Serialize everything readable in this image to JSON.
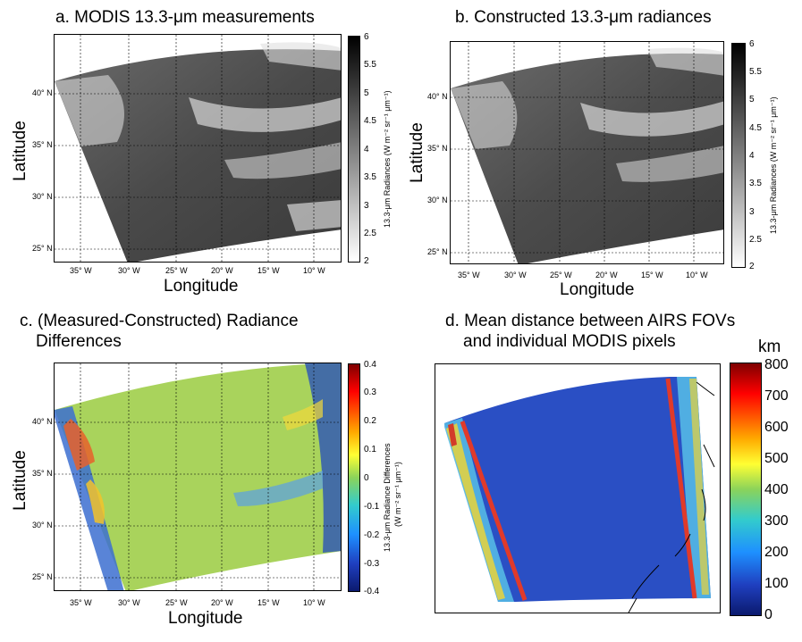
{
  "chart_data": [
    {
      "type": "heatmap",
      "title": "a. MODIS 13.3-μm measurements",
      "xlabel": "Longitude",
      "ylabel": "Latitude",
      "xticks": [
        "35° W",
        "30° W",
        "25° W",
        "20° W",
        "15° W",
        "10° W"
      ],
      "yticks": [
        "40° N",
        "35° N",
        "30° N",
        "25° N"
      ],
      "colorbar": {
        "label": "13.3-μm Radiances (W m⁻² sr⁻¹ μm⁻¹)",
        "ticks": [
          "6",
          "5.5",
          "5",
          "4.5",
          "4",
          "3.5",
          "3",
          "2.5",
          "2"
        ],
        "range": [
          2,
          6
        ],
        "colormap": "gray-reversed"
      }
    },
    {
      "type": "heatmap",
      "title": "b. Constructed 13.3-μm radiances",
      "xlabel": "Longitude",
      "ylabel": "Latitude",
      "xticks": [
        "35° W",
        "30° W",
        "25° W",
        "20° W",
        "15° W",
        "10° W"
      ],
      "yticks": [
        "40° N",
        "35° N",
        "30° N",
        "25° N"
      ],
      "colorbar": {
        "label": "13.3-μm Radiances (W m⁻² sr⁻¹ μm⁻¹)",
        "ticks": [
          "6",
          "5.5",
          "5",
          "4.5",
          "4",
          "3.5",
          "3",
          "2.5",
          "2"
        ],
        "range": [
          2,
          6
        ],
        "colormap": "gray-reversed"
      }
    },
    {
      "type": "heatmap",
      "title": "c. (Measured-Constructed) Radiance",
      "title_line2": "Differences",
      "xlabel": "Longitude",
      "ylabel": "Latitude",
      "xticks": [
        "35° W",
        "30° W",
        "25° W",
        "20° W",
        "15° W",
        "10° W"
      ],
      "yticks": [
        "40° N",
        "35° N",
        "30° N",
        "25° N"
      ],
      "colorbar": {
        "label_line1": "13.3-μm Radiance Differences",
        "label_line2": "(W m⁻² sr⁻¹ μm⁻¹)",
        "ticks": [
          "0.4",
          "0.3",
          "0.2",
          "0.1",
          "0",
          "-0.1",
          "-0.2",
          "-0.3",
          "-0.4"
        ],
        "range": [
          -0.4,
          0.4
        ],
        "colormap": "jet"
      }
    },
    {
      "type": "heatmap",
      "title": "d. Mean distance between AIRS FOVs",
      "title_line2": "and individual MODIS pixels",
      "colorbar": {
        "unit": "km",
        "ticks": [
          "800",
          "700",
          "600",
          "500",
          "400",
          "300",
          "200",
          "100",
          "0"
        ],
        "range": [
          0,
          800
        ],
        "colormap": "jet"
      }
    }
  ],
  "colors": {
    "jet_low": "#1b2a8f",
    "jet_mid": "#a6d35a",
    "jet_high": "#a01010",
    "gray_dark": "#111111",
    "gray_light": "#f2f2f2"
  }
}
